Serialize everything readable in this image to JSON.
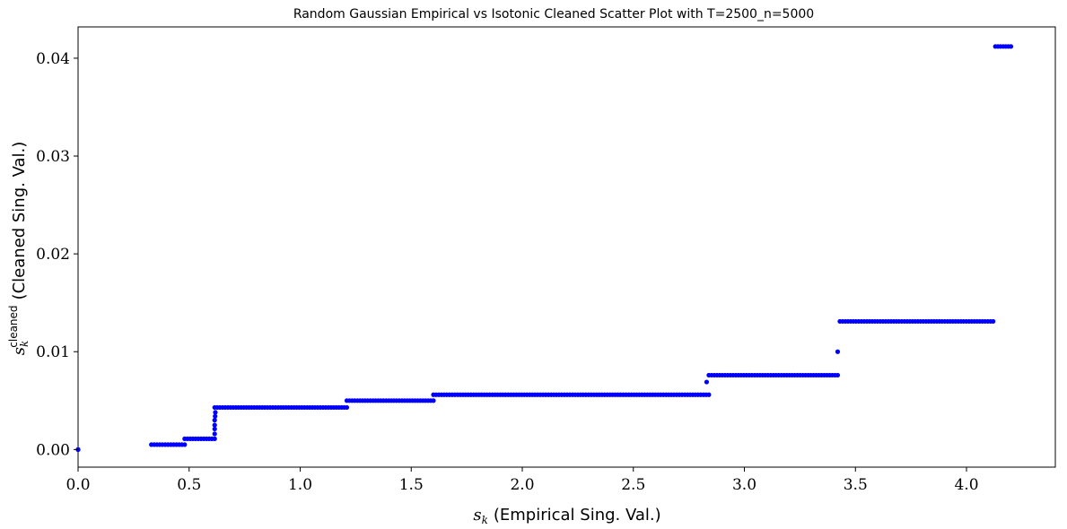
{
  "chart_data": {
    "type": "scatter",
    "title": "Random Gaussian Empirical vs Isotonic Cleaned Scatter Plot with T=2500_n=5000",
    "xlabel": {
      "symbol": "s",
      "subscript": "k",
      "text": "(Empirical Sing. Val.)"
    },
    "ylabel": {
      "symbol": "s",
      "subscript": "k",
      "superscript": "cleaned",
      "text": "(Cleaned Sing. Val.)"
    },
    "xlim": [
      0.0,
      4.4
    ],
    "ylim": [
      -0.0018,
      0.0432
    ],
    "xticks": [
      "0.0",
      "0.5",
      "1.0",
      "1.5",
      "2.0",
      "2.5",
      "3.0",
      "3.5",
      "4.0"
    ],
    "xtick_values": [
      0.0,
      0.5,
      1.0,
      1.5,
      2.0,
      2.5,
      3.0,
      3.5,
      4.0
    ],
    "yticks": [
      "0.00",
      "0.01",
      "0.02",
      "0.03",
      "0.04"
    ],
    "ytick_values": [
      0.0,
      0.01,
      0.02,
      0.03,
      0.04
    ],
    "grid": false,
    "marker_color": "#0000ff",
    "series": [
      {
        "segments": [
          {
            "x_start": 0.0,
            "x_end": 0.0,
            "y": 0.0
          },
          {
            "x_start": 0.33,
            "x_end": 0.48,
            "y": 0.0005
          },
          {
            "x_start": 0.48,
            "x_end": 0.615,
            "y": 0.0011
          },
          {
            "x_start": 0.615,
            "x_end": 1.21,
            "y": 0.0043
          },
          {
            "x_start": 1.21,
            "x_end": 1.6,
            "y": 0.005
          },
          {
            "x_start": 1.6,
            "x_end": 2.84,
            "y": 0.0056
          },
          {
            "x_start": 2.84,
            "x_end": 3.42,
            "y": 0.0076
          },
          {
            "x_start": 3.43,
            "x_end": 4.12,
            "y": 0.0131
          },
          {
            "x_start": 4.13,
            "x_end": 4.2,
            "y": 0.0412
          }
        ],
        "points": [
          {
            "x": 0.615,
            "y": 0.0016
          },
          {
            "x": 0.615,
            "y": 0.0021
          },
          {
            "x": 0.615,
            "y": 0.0025
          },
          {
            "x": 0.615,
            "y": 0.003
          },
          {
            "x": 0.617,
            "y": 0.0034
          },
          {
            "x": 0.618,
            "y": 0.0038
          },
          {
            "x": 2.83,
            "y": 0.0069
          },
          {
            "x": 3.42,
            "y": 0.01
          }
        ]
      }
    ]
  }
}
